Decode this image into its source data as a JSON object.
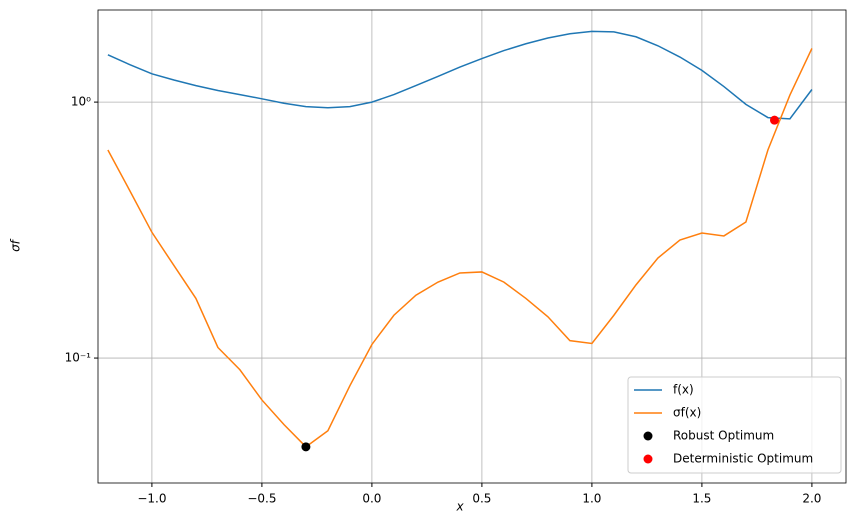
{
  "chart_data": {
    "type": "line",
    "x_label": "x",
    "y_label": "σf",
    "x": [
      -1.2,
      -1.1,
      -1.0,
      -0.9,
      -0.8,
      -0.7,
      -0.6,
      -0.5,
      -0.4,
      -0.3,
      -0.2,
      -0.1,
      0.0,
      0.1,
      0.2,
      0.3,
      0.4,
      0.5,
      0.6,
      0.7,
      0.8,
      0.9,
      1.0,
      1.1,
      1.2,
      1.3,
      1.4,
      1.5,
      1.6,
      1.7,
      1.8,
      1.9,
      2.0
    ],
    "series": [
      {
        "name": "f(x)",
        "color": "#1f77b4",
        "values": [
          1.53,
          1.4,
          1.29,
          1.22,
          1.16,
          1.11,
          1.07,
          1.03,
          0.99,
          0.96,
          0.95,
          0.96,
          1.0,
          1.07,
          1.16,
          1.26,
          1.37,
          1.48,
          1.59,
          1.69,
          1.78,
          1.85,
          1.89,
          1.88,
          1.8,
          1.66,
          1.5,
          1.33,
          1.15,
          0.98,
          0.87,
          0.86,
          1.12
        ]
      },
      {
        "name": "σf(x)",
        "color": "#ff7f0e",
        "values": [
          0.65,
          0.45,
          0.31,
          0.23,
          0.171,
          0.11,
          0.09,
          0.0686,
          0.055,
          0.045,
          0.052,
          0.078,
          0.113,
          0.147,
          0.176,
          0.198,
          0.215,
          0.217,
          0.198,
          0.171,
          0.145,
          0.117,
          0.114,
          0.147,
          0.193,
          0.246,
          0.289,
          0.308,
          0.3,
          0.34,
          0.65,
          1.065,
          1.62
        ]
      }
    ],
    "points": [
      {
        "name": "Robust Optimum",
        "color": "#000000",
        "x": -0.3,
        "y": 0.045
      },
      {
        "name": "Deterministic Optimum",
        "color": "#ff0000",
        "x": 1.83,
        "y": 0.85
      }
    ],
    "xlim": [
      -1.245,
      2.155
    ],
    "ylim": [
      0.0325,
      2.29
    ],
    "log_y": true,
    "xticks": [
      {
        "value": -1.0,
        "label": "−1.0"
      },
      {
        "value": -0.5,
        "label": "−0.5"
      },
      {
        "value": 0.0,
        "label": "0.0"
      },
      {
        "value": 0.5,
        "label": "0.5"
      },
      {
        "value": 1.0,
        "label": "1.0"
      },
      {
        "value": 1.5,
        "label": "1.5"
      },
      {
        "value": 2.0,
        "label": "2.0"
      }
    ],
    "yticks": [
      {
        "value": 0.1,
        "label": "10⁻¹"
      },
      {
        "value": 1,
        "label": "10⁰"
      }
    ],
    "grid": true,
    "legend": "lower-right"
  }
}
